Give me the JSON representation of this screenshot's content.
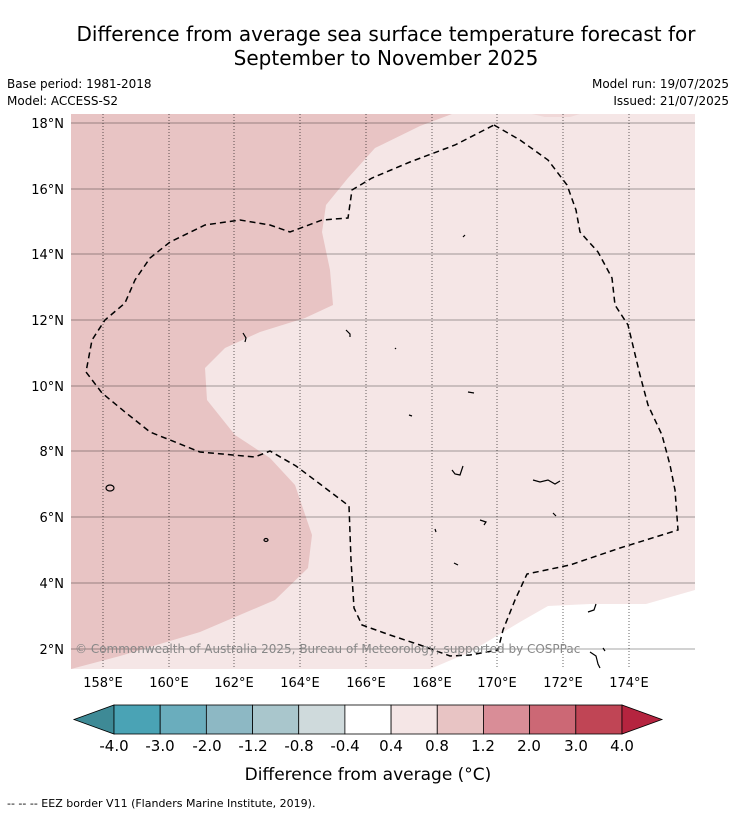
{
  "title_line1": "Difference from average sea surface temperature forecast for",
  "title_line2": "September to November 2025",
  "base_period": "Base period: 1981-2018",
  "model": "Model: ACCESS-S2",
  "model_run": "Model run: 19/07/2025",
  "issued": "Issued: 21/07/2025",
  "copyright": "© Commonwealth of Australia 2025, Bureau of Meteorology, supported by COSPPac",
  "legend_title": "Difference from average (°C)",
  "footer": "-- -- -- EEZ border V11 (Flanders Marine Institute, 2019).",
  "lat_labels": [
    "18°N",
    "16°N",
    "14°N",
    "12°N",
    "10°N",
    "8°N",
    "6°N",
    "4°N",
    "2°N"
  ],
  "lon_labels": [
    "158°E",
    "160°E",
    "162°E",
    "164°E",
    "166°E",
    "168°E",
    "170°E",
    "172°E",
    "174°E"
  ],
  "colorbar": {
    "labels": [
      "-4.0",
      "-3.0",
      "-2.0",
      "-1.2",
      "-0.8",
      "-0.4",
      "0.4",
      "0.8",
      "1.2",
      "2.0",
      "3.0",
      "4.0"
    ],
    "colors": [
      "#3e8a96",
      "#4aa3b5",
      "#6aadbd",
      "#8db8c4",
      "#a9c6cc",
      "#cfdadc",
      "#ffffff",
      "#f5e6e6",
      "#e8c4c4",
      "#d98d97",
      "#cc6875",
      "#c04555",
      "#b5243f"
    ]
  }
}
